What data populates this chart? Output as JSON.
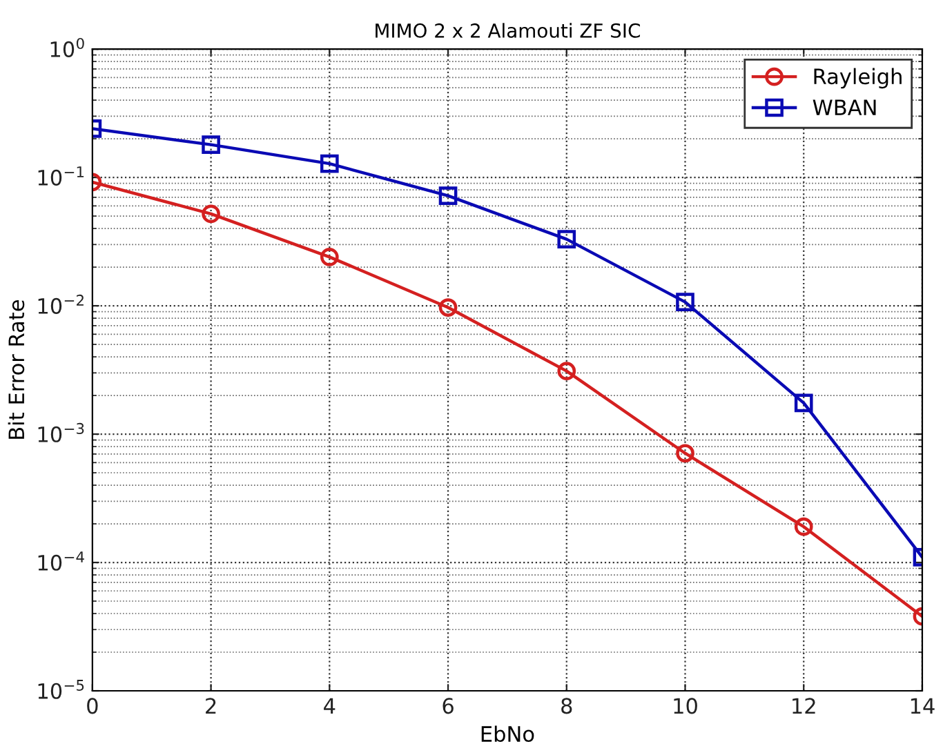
{
  "chart_data": {
    "type": "line",
    "title": "MIMO 2 x 2 Alamouti ZF SIC",
    "xlabel": "EbNo",
    "ylabel": "Bit Error Rate",
    "x": [
      0,
      2,
      4,
      6,
      8,
      10,
      12,
      14
    ],
    "series": [
      {
        "name": "Rayleigh",
        "color": "#d42020",
        "marker": "circle",
        "values": [
          0.092,
          0.052,
          0.024,
          0.0097,
          0.0031,
          0.00071,
          0.00019,
          3.8e-05
        ]
      },
      {
        "name": "WBAN",
        "color": "#0a0ab4",
        "marker": "square",
        "values": [
          0.24,
          0.18,
          0.128,
          0.072,
          0.033,
          0.0107,
          0.00175,
          0.00011
        ]
      }
    ],
    "log": "y",
    "xlim": [
      0,
      14
    ],
    "xticks": [
      0,
      2,
      4,
      6,
      8,
      10,
      12,
      14
    ],
    "ylim": [
      1e-05,
      1
    ],
    "yticks": [
      {
        "value": 1e-05,
        "label": "10$^{−5}$"
      },
      {
        "value": 0.0001,
        "label": "10$^{−4}$"
      },
      {
        "value": 0.001,
        "label": "10$^{−3}$"
      },
      {
        "value": 0.01,
        "label": "10$^{−2}$"
      },
      {
        "value": 0.1,
        "label": "10$^{−1}$"
      },
      {
        "value": 1,
        "label": "10$^{0}$"
      }
    ],
    "grid": true,
    "legend": "top right",
    "line_style": "solid"
  }
}
